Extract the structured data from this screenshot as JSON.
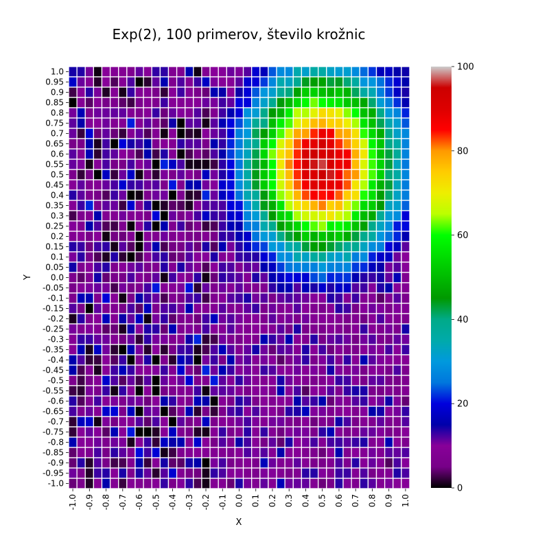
{
  "chart_data": {
    "type": "heatmap",
    "title": "Exp(2), 100 primerov, število krožnic",
    "xlabel": "X",
    "ylabel": "Y",
    "x_ticks": [
      "-1.0",
      "-0.9",
      "-0.8",
      "-0.7",
      "-0.6",
      "-0.5",
      "-0.4",
      "-0.3",
      "-0.2",
      "-0.1",
      "0.0",
      "0.1",
      "0.2",
      "0.3",
      "0.4",
      "0.5",
      "0.6",
      "0.7",
      "0.8",
      "0.9",
      "1.0"
    ],
    "y_ticks": [
      "1.0",
      "0.95",
      "0.9",
      "0.85",
      "0.8",
      "0.75",
      "0.7",
      "0.65",
      "0.6",
      "0.55",
      "0.5",
      "0.45",
      "0.4",
      "0.35",
      "0.3",
      "0.25",
      "0.2",
      "0.15",
      "0.1",
      "0.05",
      "0.0",
      "-0.05",
      "-0.1",
      "-0.15",
      "-0.2",
      "-0.25",
      "-0.3",
      "-0.35",
      "-0.4",
      "-0.45",
      "-0.5",
      "-0.55",
      "-0.6",
      "-0.65",
      "-0.7",
      "-0.75",
      "-0.8",
      "-0.85",
      "-0.9",
      "-0.95",
      "-1.0"
    ],
    "x_range": [
      -1.0,
      1.0
    ],
    "y_range": [
      -1.0,
      1.0
    ],
    "x_step": 0.05,
    "y_step": 0.05,
    "colorbar": {
      "min": 0,
      "max": 100,
      "ticks": [
        "0",
        "20",
        "40",
        "60",
        "80",
        "100"
      ],
      "colormap": "nipy_spectral"
    },
    "estimated_field": {
      "description": "values estimated from colors",
      "background": 10,
      "peak": {
        "x": 0.5,
        "y": 0.55,
        "value": 95
      }
    },
    "grid": "white cell borders",
    "colorbar_position": "right"
  }
}
